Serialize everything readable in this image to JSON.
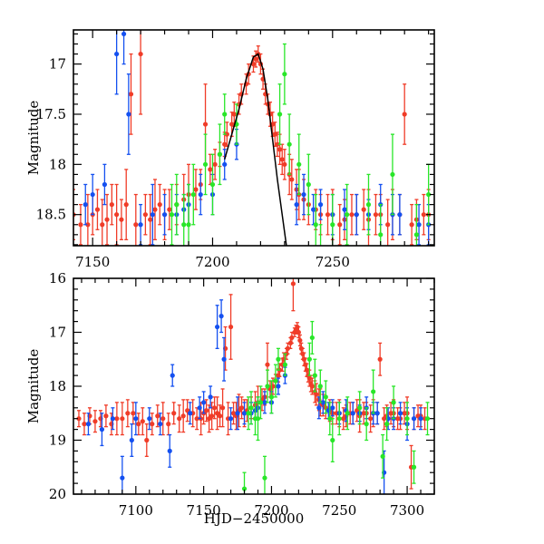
{
  "chart_data": [
    {
      "type": "scatter",
      "panel": "top",
      "xlabel": "",
      "ylabel": "Magnitude",
      "xlim": [
        7142,
        7292.4
      ],
      "ylim": [
        18.81,
        16.66
      ],
      "xticks": [
        7150,
        7200,
        7250
      ],
      "yticks": [
        17,
        17.5,
        18,
        18.5
      ],
      "xminor": 10,
      "yminor": 0.1
    },
    {
      "type": "scatter",
      "panel": "bottom",
      "xlabel": "HJD−2450000",
      "ylabel": "Magnitude",
      "xlim": [
        7054,
        7320
      ],
      "ylim": [
        20,
        16
      ],
      "xticks": [
        7100,
        7150,
        7200,
        7250,
        7300
      ],
      "yticks": [
        16,
        17,
        18,
        19,
        20
      ],
      "xminor": 10,
      "yminor": 0.2
    }
  ],
  "series": [
    {
      "name": "red",
      "color": "#f03c28",
      "points": [
        [
          7058,
          18.6,
          0.15
        ],
        [
          7062,
          18.7,
          0.2
        ],
        [
          7066,
          18.55,
          0.15
        ],
        [
          7070,
          18.65,
          0.2
        ],
        [
          7074,
          18.6,
          0.15
        ],
        [
          7078,
          18.55,
          0.2
        ],
        [
          7082,
          18.7,
          0.2
        ],
        [
          7086,
          18.6,
          0.3
        ],
        [
          7090,
          18.6,
          0.3
        ],
        [
          7094,
          18.5,
          0.25
        ],
        [
          7098,
          18.5,
          0.2
        ],
        [
          7102,
          18.7,
          0.2
        ],
        [
          7105,
          18.65,
          0.25
        ],
        [
          7108,
          19.0,
          0.3
        ],
        [
          7112,
          18.7,
          0.2
        ],
        [
          7116,
          18.55,
          0.2
        ],
        [
          7120,
          18.6,
          0.3
        ],
        [
          7124,
          18.7,
          0.2
        ],
        [
          7128,
          18.5,
          0.2
        ],
        [
          7132,
          18.6,
          0.25
        ],
        [
          7135,
          18.55,
          0.3
        ],
        [
          7138,
          18.45,
          0.2
        ],
        [
          7142,
          18.5,
          0.25
        ],
        [
          7145,
          18.6,
          0.2
        ],
        [
          7148,
          18.6,
          0.3
        ],
        [
          7150,
          18.5,
          0.2
        ],
        [
          7152,
          18.45,
          0.2
        ],
        [
          7154,
          18.6,
          0.25
        ],
        [
          7156,
          18.55,
          0.25
        ],
        [
          7158,
          18.4,
          0.2
        ],
        [
          7160,
          18.5,
          0.3
        ],
        [
          7162,
          18.55,
          0.2
        ],
        [
          7164,
          18.4,
          0.35
        ],
        [
          7166,
          17.3,
          0.4
        ],
        [
          7168,
          18.6,
          0.3
        ],
        [
          7170,
          16.9,
          0.6
        ],
        [
          7172,
          18.5,
          0.2
        ],
        [
          7174,
          18.55,
          0.25
        ],
        [
          7176,
          18.45,
          0.3
        ],
        [
          7178,
          18.4,
          0.2
        ],
        [
          7180,
          18.5,
          0.25
        ],
        [
          7182,
          18.45,
          0.2
        ],
        [
          7185,
          18.4,
          0.2
        ],
        [
          7188,
          18.35,
          0.25
        ],
        [
          7190,
          18.3,
          0.3
        ],
        [
          7193,
          18.25,
          0.2
        ],
        [
          7195,
          18.2,
          0.15
        ],
        [
          7197,
          17.6,
          0.4
        ],
        [
          7199,
          18.05,
          0.15
        ],
        [
          7201,
          18.0,
          0.15
        ],
        [
          7203,
          17.9,
          0.12
        ],
        [
          7205,
          17.8,
          0.12
        ],
        [
          7206,
          17.7,
          0.12
        ],
        [
          7208,
          17.6,
          0.12
        ],
        [
          7209,
          17.5,
          0.12
        ],
        [
          7211,
          17.4,
          0.1
        ],
        [
          7212,
          17.3,
          0.1
        ],
        [
          7214,
          17.2,
          0.1
        ],
        [
          7215,
          17.1,
          0.1
        ],
        [
          7216,
          16.1,
          0.5
        ],
        [
          7217,
          17.0,
          0.08
        ],
        [
          7218,
          16.95,
          0.08
        ],
        [
          7219,
          16.9,
          0.08
        ],
        [
          7220,
          17.0,
          0.1
        ],
        [
          7221,
          17.15,
          0.1
        ],
        [
          7222,
          17.3,
          0.1
        ],
        [
          7223,
          17.4,
          0.1
        ],
        [
          7224,
          17.5,
          0.12
        ],
        [
          7225,
          17.6,
          0.12
        ],
        [
          7226,
          17.7,
          0.12
        ],
        [
          7227,
          17.8,
          0.12
        ],
        [
          7228,
          17.85,
          0.15
        ],
        [
          7229,
          17.95,
          0.15
        ],
        [
          7230,
          18.0,
          0.15
        ],
        [
          7232,
          18.1,
          0.2
        ],
        [
          7233,
          18.15,
          0.2
        ],
        [
          7235,
          18.25,
          0.2
        ],
        [
          7236,
          18.3,
          0.25
        ],
        [
          7238,
          18.35,
          0.2
        ],
        [
          7240,
          18.4,
          0.2
        ],
        [
          7243,
          18.45,
          0.2
        ],
        [
          7245,
          18.5,
          0.2
        ],
        [
          7248,
          18.5,
          0.2
        ],
        [
          7250,
          18.5,
          0.25
        ],
        [
          7253,
          18.6,
          0.2
        ],
        [
          7255,
          18.55,
          0.2
        ],
        [
          7258,
          18.5,
          0.2
        ],
        [
          7260,
          18.5,
          0.2
        ],
        [
          7263,
          18.45,
          0.2
        ],
        [
          7265,
          18.55,
          0.3
        ],
        [
          7268,
          18.5,
          0.2
        ],
        [
          7270,
          18.5,
          0.2
        ],
        [
          7273,
          18.6,
          0.25
        ],
        [
          7275,
          18.5,
          0.25
        ],
        [
          7278,
          18.5,
          0.2
        ],
        [
          7280,
          17.5,
          0.3
        ],
        [
          7283,
          18.6,
          0.2
        ],
        [
          7285,
          18.55,
          0.2
        ],
        [
          7288,
          18.5,
          0.2
        ],
        [
          7290,
          18.5,
          0.25
        ],
        [
          7293,
          18.6,
          0.2
        ],
        [
          7295,
          18.6,
          0.2
        ],
        [
          7298,
          18.5,
          0.2
        ],
        [
          7300,
          18.5,
          0.3
        ],
        [
          7303,
          19.5,
          0.4
        ],
        [
          7305,
          18.6,
          0.2
        ],
        [
          7308,
          18.55,
          0.2
        ],
        [
          7310,
          18.55,
          0.2
        ],
        [
          7313,
          18.6,
          0.2
        ]
      ]
    },
    {
      "name": "blue",
      "color": "#1450f0",
      "points": [
        [
          7065,
          18.7,
          0.2
        ],
        [
          7075,
          18.8,
          0.3
        ],
        [
          7083,
          18.6,
          0.2
        ],
        [
          7090,
          19.7,
          0.4
        ],
        [
          7097,
          19.0,
          0.3
        ],
        [
          7100,
          18.6,
          0.3
        ],
        [
          7110,
          18.6,
          0.2
        ],
        [
          7118,
          18.7,
          0.2
        ],
        [
          7125,
          19.2,
          0.3
        ],
        [
          7127,
          17.8,
          0.2
        ],
        [
          7140,
          18.5,
          0.2
        ],
        [
          7147,
          18.4,
          0.2
        ],
        [
          7150,
          18.3,
          0.2
        ],
        [
          7155,
          18.2,
          0.2
        ],
        [
          7160,
          16.9,
          0.4
        ],
        [
          7163,
          16.7,
          0.3
        ],
        [
          7165,
          17.5,
          0.4
        ],
        [
          7170,
          18.6,
          0.2
        ],
        [
          7175,
          18.5,
          0.3
        ],
        [
          7180,
          18.5,
          0.2
        ],
        [
          7185,
          18.5,
          0.2
        ],
        [
          7188,
          18.45,
          0.15
        ],
        [
          7190,
          18.4,
          0.2
        ],
        [
          7195,
          18.3,
          0.2
        ],
        [
          7200,
          18.3,
          0.2
        ],
        [
          7205,
          18.0,
          0.15
        ],
        [
          7210,
          17.8,
          0.15
        ],
        [
          7235,
          18.4,
          0.2
        ],
        [
          7238,
          18.3,
          0.2
        ],
        [
          7242,
          18.45,
          0.15
        ],
        [
          7245,
          18.4,
          0.15
        ],
        [
          7250,
          18.5,
          0.2
        ],
        [
          7255,
          18.45,
          0.2
        ],
        [
          7260,
          18.5,
          0.2
        ],
        [
          7265,
          18.5,
          0.15
        ],
        [
          7270,
          18.4,
          0.2
        ],
        [
          7275,
          18.5,
          0.2
        ],
        [
          7278,
          18.5,
          0.2
        ],
        [
          7283,
          19.6,
          0.4
        ],
        [
          7286,
          18.6,
          0.2
        ],
        [
          7290,
          18.6,
          0.2
        ],
        [
          7295,
          18.5,
          0.2
        ],
        [
          7300,
          18.7,
          0.3
        ],
        [
          7305,
          18.6,
          0.2
        ],
        [
          7310,
          18.6,
          0.2
        ]
      ]
    },
    {
      "name": "green",
      "color": "#28e628",
      "points": [
        [
          7180,
          19.9,
          0.3
        ],
        [
          7183,
          18.5,
          0.3
        ],
        [
          7185,
          18.4,
          0.3
        ],
        [
          7188,
          18.6,
          0.3
        ],
        [
          7190,
          18.6,
          0.4
        ],
        [
          7192,
          18.3,
          0.3
        ],
        [
          7195,
          19.7,
          0.4
        ],
        [
          7197,
          18.0,
          0.3
        ],
        [
          7200,
          18.2,
          0.3
        ],
        [
          7203,
          17.9,
          0.3
        ],
        [
          7205,
          17.5,
          0.2
        ],
        [
          7210,
          17.6,
          0.2
        ],
        [
          7228,
          17.5,
          0.3
        ],
        [
          7230,
          17.1,
          0.3
        ],
        [
          7232,
          17.8,
          0.3
        ],
        [
          7236,
          18.0,
          0.3
        ],
        [
          7240,
          18.2,
          0.3
        ],
        [
          7243,
          18.6,
          0.3
        ],
        [
          7245,
          19.0,
          0.4
        ],
        [
          7250,
          18.6,
          0.3
        ],
        [
          7256,
          18.5,
          0.3
        ],
        [
          7265,
          18.4,
          0.3
        ],
        [
          7270,
          18.7,
          0.3
        ],
        [
          7275,
          18.1,
          0.4
        ],
        [
          7282,
          19.3,
          0.4
        ],
        [
          7285,
          18.7,
          0.3
        ],
        [
          7290,
          18.3,
          0.3
        ],
        [
          7300,
          18.6,
          0.3
        ],
        [
          7305,
          19.5,
          0.3
        ],
        [
          7315,
          18.6,
          0.3
        ]
      ]
    }
  ],
  "model_curve": {
    "color": "#000000",
    "points": [
      [
        7205,
        17.95
      ],
      [
        7208,
        17.7
      ],
      [
        7211,
        17.45
      ],
      [
        7214,
        17.15
      ],
      [
        7217,
        16.93
      ],
      [
        7219,
        16.9
      ],
      [
        7221,
        17.05
      ],
      [
        7223,
        17.35
      ],
      [
        7225,
        17.75
      ],
      [
        7227,
        18.15
      ],
      [
        7229,
        18.5
      ],
      [
        7231,
        18.85
      ]
    ]
  }
}
